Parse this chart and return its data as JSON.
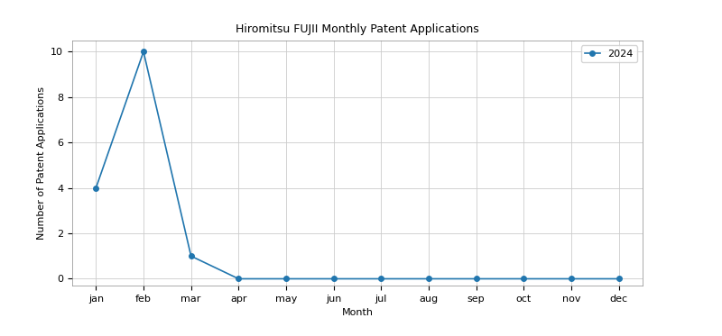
{
  "title": "Hiromitsu FUJII Monthly Patent Applications",
  "xlabel": "Month",
  "ylabel": "Number of Patent Applications",
  "months": [
    "jan",
    "feb",
    "mar",
    "apr",
    "may",
    "jun",
    "jul",
    "aug",
    "sep",
    "oct",
    "nov",
    "dec"
  ],
  "values_2024": [
    4,
    10,
    1,
    0,
    0,
    0,
    0,
    0,
    0,
    0,
    0,
    0
  ],
  "line_color": "#2176ae",
  "legend_label": "2024",
  "ylim": [
    -0.3,
    10.5
  ],
  "marker": "o",
  "marker_size": 4,
  "linewidth": 1.2,
  "grid": true,
  "background_color": "#ffffff",
  "title_fontsize": 9,
  "axis_label_fontsize": 8,
  "tick_fontsize": 8,
  "legend_fontsize": 8
}
